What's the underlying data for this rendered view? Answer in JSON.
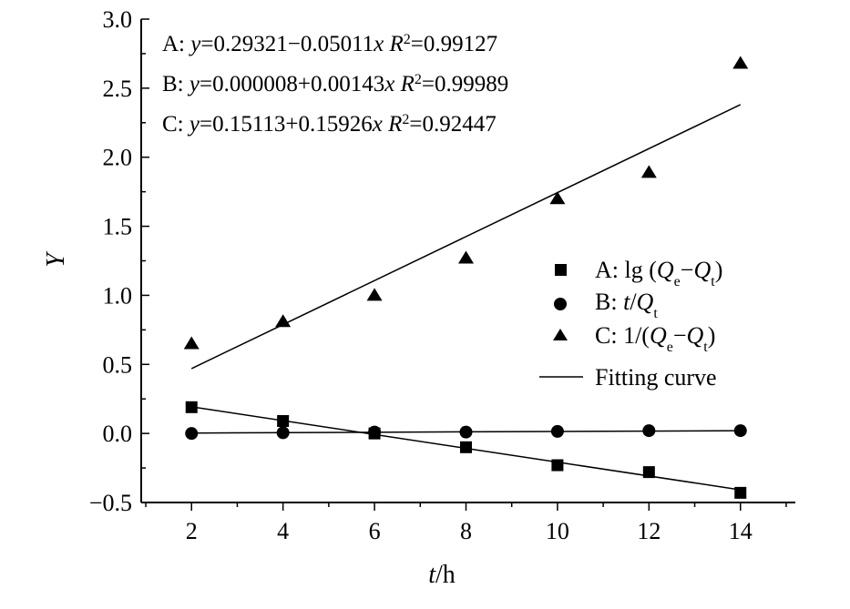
{
  "chart_data": {
    "type": "scatter",
    "xlabel_var": "t",
    "xlabel_unit": "/h",
    "ylabel": "Y",
    "xlim": [
      0.9,
      15.2
    ],
    "ylim": [
      -0.5,
      3.0
    ],
    "xticks": [
      2,
      4,
      6,
      8,
      10,
      12,
      14
    ],
    "yticks": [
      -0.5,
      0.0,
      0.5,
      1.0,
      1.5,
      2.0,
      2.5,
      3.0
    ],
    "ytick_labels": [
      "-0.5",
      "0.0",
      "0.5",
      "1.0",
      "1.5",
      "2.0",
      "2.5",
      "3.0"
    ],
    "equations": [
      {
        "series": "A",
        "intercept": "0.29321",
        "op": "−",
        "slope": "0.05011",
        "r2": "0.99127"
      },
      {
        "series": "B",
        "intercept": "0.000008",
        "op": "+",
        "slope": "0.00143",
        "r2": "0.99989"
      },
      {
        "series": "C",
        "intercept": "0.15113",
        "op": "+",
        "slope": "0.15926",
        "r2": "0.92447"
      }
    ],
    "series": [
      {
        "key": "A",
        "marker": "square",
        "x": [
          2,
          4,
          6,
          8,
          10,
          12,
          14
        ],
        "y": [
          0.19,
          0.09,
          0.0,
          -0.1,
          -0.23,
          -0.28,
          -0.43
        ],
        "fit": {
          "intercept": 0.29321,
          "slope": -0.05011
        }
      },
      {
        "key": "B",
        "marker": "circle",
        "x": [
          2,
          4,
          6,
          8,
          10,
          12,
          14
        ],
        "y": [
          0.0,
          0.005,
          0.01,
          0.01,
          0.015,
          0.02,
          0.02
        ],
        "fit": {
          "intercept": 8e-06,
          "slope": 0.00143
        }
      },
      {
        "key": "C",
        "marker": "triangle",
        "x": [
          2,
          4,
          6,
          8,
          10,
          12,
          14
        ],
        "y": [
          0.65,
          0.81,
          1.0,
          1.27,
          1.7,
          1.89,
          2.68
        ],
        "fit": {
          "intercept": 0.15113,
          "slope": 0.15926
        }
      }
    ],
    "legend": {
      "placement": "right",
      "fitting_label": "Fitting curve"
    }
  }
}
